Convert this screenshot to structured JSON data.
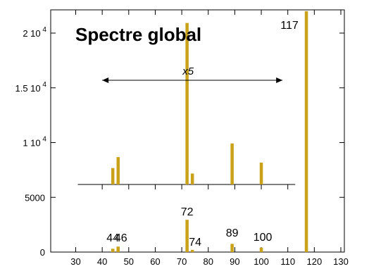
{
  "chart_data": {
    "type": "bar",
    "title": "Spectre global",
    "xlabel": "",
    "ylabel": "",
    "xlim": [
      20,
      132
    ],
    "ylim": [
      0,
      22500
    ],
    "x_ticks": [
      30,
      40,
      50,
      60,
      70,
      80,
      90,
      100,
      110,
      120,
      130
    ],
    "y_ticks": [
      {
        "value": 0,
        "label": "0"
      },
      {
        "value": 5000,
        "label": "5000"
      },
      {
        "value": 10000,
        "label": "1 10",
        "exp": "4"
      },
      {
        "value": 15000,
        "label": "1.5 10",
        "exp": "4"
      },
      {
        "value": 20000,
        "label": "2 10",
        "exp": "4"
      }
    ],
    "bar_color": "#c9a21a",
    "bars": [
      {
        "x": 44,
        "y": 300,
        "label": "44"
      },
      {
        "x": 46,
        "y": 500,
        "label": "46"
      },
      {
        "x": 72,
        "y": 2950,
        "label": "72"
      },
      {
        "x": 74,
        "y": 200,
        "label": "74"
      },
      {
        "x": 89,
        "y": 750,
        "label": "89"
      },
      {
        "x": 100,
        "y": 400,
        "label": "100"
      },
      {
        "x": 117,
        "y": 22000,
        "label": "117"
      }
    ],
    "inset": {
      "label": "x5",
      "arrow_range": [
        40,
        108
      ],
      "x_ticks": [
        40,
        50,
        60,
        70,
        80,
        90,
        100,
        110
      ],
      "bars": [
        {
          "x": 44,
          "y": 300
        },
        {
          "x": 46,
          "y": 500
        },
        {
          "x": 72,
          "y": 2950
        },
        {
          "x": 74,
          "y": 200
        },
        {
          "x": 89,
          "y": 750
        },
        {
          "x": 100,
          "y": 400
        }
      ]
    }
  }
}
